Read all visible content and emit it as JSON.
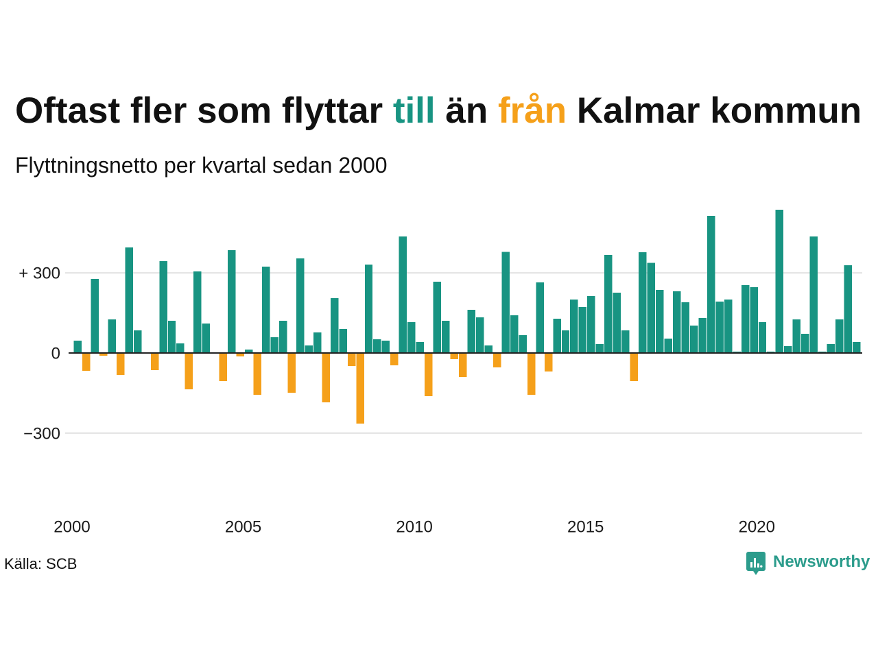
{
  "colors": {
    "positive": "#189482",
    "negative": "#f5a01a",
    "text": "#111111",
    "grid": "#e2e2e2",
    "zero_line": "#222222",
    "brand": "#2c9c8c"
  },
  "chart_data": {
    "type": "bar",
    "title": "Oftast fler som flyttar till än från Kalmar kommun",
    "title_highlights": [
      {
        "word": "till",
        "color": "#189482"
      },
      {
        "word": "från",
        "color": "#f5a01a"
      }
    ],
    "subtitle": "Flyttningsnetto per kvartal sedan 2000",
    "x": [
      2000,
      2000.25,
      2000.5,
      2000.75,
      2001,
      2001.25,
      2001.5,
      2001.75,
      2002,
      2002.25,
      2002.5,
      2002.75,
      2003,
      2003.25,
      2003.5,
      2003.75,
      2004,
      2004.25,
      2004.5,
      2004.75,
      2005,
      2005.25,
      2005.5,
      2005.75,
      2006,
      2006.25,
      2006.5,
      2006.75,
      2007,
      2007.25,
      2007.5,
      2007.75,
      2008,
      2008.25,
      2008.5,
      2008.75,
      2009,
      2009.25,
      2009.5,
      2009.75,
      2010,
      2010.25,
      2010.5,
      2010.75,
      2011,
      2011.25,
      2011.5,
      2011.75,
      2012,
      2012.25,
      2012.5,
      2012.75,
      2013,
      2013.25,
      2013.5,
      2013.75,
      2014,
      2014.25,
      2014.5,
      2014.75,
      2015,
      2015.25,
      2015.5,
      2015.75,
      2016,
      2016.25,
      2016.5,
      2016.75,
      2017,
      2017.25,
      2017.5,
      2017.75,
      2018,
      2018.25,
      2018.5,
      2018.75,
      2019,
      2019.25,
      2019.5,
      2019.75,
      2020,
      2020.25,
      2020.5,
      2020.75,
      2021,
      2021.25,
      2021.5,
      2021.75,
      2022,
      2022.25,
      2022.5,
      2022.75
    ],
    "values": [
      46,
      -67,
      277,
      -10,
      126,
      -82,
      395,
      85,
      -2,
      -64,
      344,
      121,
      36,
      -136,
      305,
      110,
      -3,
      -105,
      385,
      -13,
      13,
      -156,
      323,
      59,
      121,
      -149,
      354,
      28,
      77,
      -185,
      205,
      90,
      -49,
      -264,
      331,
      51,
      46,
      -46,
      436,
      115,
      41,
      -162,
      267,
      121,
      -23,
      -90,
      162,
      133,
      28,
      -54,
      379,
      141,
      67,
      -156,
      264,
      -69,
      128,
      85,
      200,
      172,
      213,
      33,
      367,
      226,
      85,
      -105,
      377,
      338,
      236,
      54,
      231,
      190,
      103,
      131,
      513,
      192,
      200,
      5,
      254,
      246,
      115,
      5,
      536,
      26,
      126,
      72,
      436,
      5,
      33,
      126,
      328,
      41
    ],
    "xlim": [
      2000,
      2023
    ],
    "ylim": [
      -580,
      580
    ],
    "xticks": [
      {
        "value": 2000,
        "label": "2000"
      },
      {
        "value": 2005,
        "label": "2005"
      },
      {
        "value": 2010,
        "label": "2010"
      },
      {
        "value": 2015,
        "label": "2015"
      },
      {
        "value": 2020,
        "label": "2020"
      }
    ],
    "yticks": [
      {
        "value": 300,
        "label": "+ 300"
      },
      {
        "value": 0,
        "label": "0"
      },
      {
        "value": -300,
        "label": "−300"
      }
    ],
    "grid": true
  },
  "source": "Källa: SCB",
  "logo": {
    "text": "Newsworthy",
    "icon": "newsworthy-logo-icon"
  }
}
